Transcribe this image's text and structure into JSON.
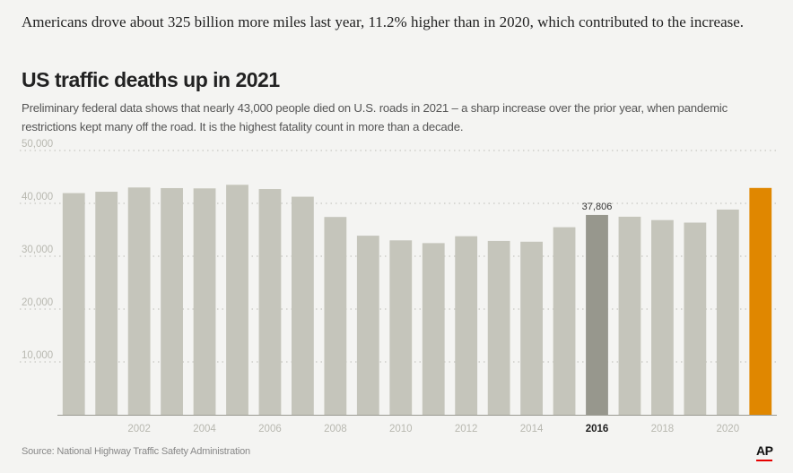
{
  "lead_text": "Americans drove about 325 billion more miles last year, 11.2% higher than in 2020, which contributed to the increase.",
  "chart_data": {
    "type": "bar",
    "title": "US traffic deaths up in 2021",
    "subtitle": "Preliminary federal data shows that nearly 43,000 people died on U.S. roads in 2021 – a sharp increase over the prior year, when pandemic restrictions kept many off the road. It is the highest fatality count in more than a decade.",
    "categories": [
      "2000",
      "2001",
      "2002",
      "2003",
      "2004",
      "2005",
      "2006",
      "2007",
      "2008",
      "2009",
      "2010",
      "2011",
      "2012",
      "2013",
      "2014",
      "2015",
      "2016",
      "2017",
      "2018",
      "2019",
      "2020",
      "2021"
    ],
    "values": [
      41945,
      42196,
      43005,
      42884,
      42836,
      43510,
      42708,
      41259,
      37423,
      33883,
      32999,
      32479,
      33782,
      32893,
      32744,
      35484,
      37806,
      37473,
      36835,
      36355,
      38824,
      42915
    ],
    "x_tick_labels": [
      "2002",
      "2004",
      "2006",
      "2008",
      "2010",
      "2012",
      "2014",
      "2016",
      "2018",
      "2020"
    ],
    "highlighted_year_label": "2016",
    "y_ticks": [
      "10,000",
      "20,000",
      "30,000",
      "40,000",
      "50,000"
    ],
    "y_tick_values": [
      10000,
      20000,
      30000,
      40000,
      50000
    ],
    "ylim": [
      0,
      50000
    ],
    "grid": true,
    "annotations": [
      {
        "category": "2016",
        "label": "37,806"
      }
    ],
    "colors": {
      "default": "#c5c5bb",
      "highlight": "#97978d",
      "latest": "#e08700",
      "grid": "#bdbdb5",
      "tick_text": "#b8b8b0",
      "highlight_tick_text": "#222222"
    }
  },
  "source": "Source: National Highway Traffic Safety Administration",
  "logo_text": "AP"
}
